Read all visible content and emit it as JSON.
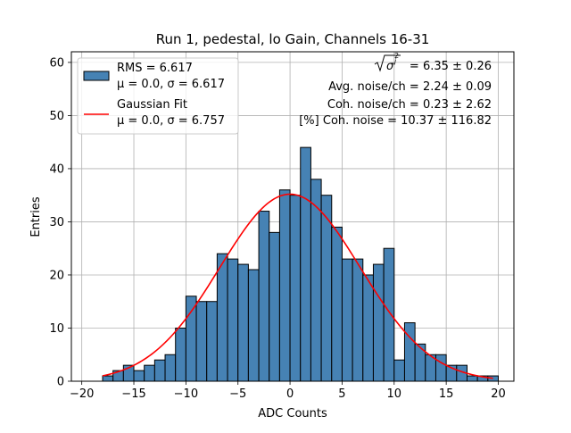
{
  "chart_data": {
    "type": "histogram",
    "title": "Run 1, pedestal, lo Gain, Channels 16-31",
    "xlabel": "ADC Counts",
    "ylabel": "Entries",
    "xlim": [
      -21,
      21.5
    ],
    "ylim": [
      0,
      62
    ],
    "grid": true,
    "legend_position": "top-left",
    "xticks": [
      -20,
      -15,
      -10,
      -5,
      0,
      5,
      10,
      15,
      20
    ],
    "xtick_labels": [
      "−20",
      "−15",
      "−10",
      "−5",
      "0",
      "5",
      "10",
      "15",
      "20"
    ],
    "yticks": [
      0,
      10,
      20,
      30,
      40,
      50,
      60
    ],
    "ytick_labels": [
      "0",
      "10",
      "20",
      "30",
      "40",
      "50",
      "60"
    ],
    "bins": {
      "start": -18,
      "width": 1,
      "counts": [
        1,
        2,
        3,
        2,
        3,
        4,
        5,
        10,
        16,
        15,
        15,
        24,
        23,
        22,
        21,
        32,
        28,
        36,
        35,
        44,
        38,
        35,
        29,
        23,
        23,
        20,
        22,
        25,
        4,
        11,
        7,
        5,
        5,
        3,
        3,
        1,
        1,
        1
      ]
    },
    "series": [
      {
        "name": "RMS = 6.617",
        "name_line2": "μ = 0.0, σ = 6.617",
        "kind": "hist",
        "color": "#4682b4"
      },
      {
        "name": "Gaussian Fit",
        "name_line2": "μ = 0.0, σ = 6.757",
        "kind": "line",
        "color": "#ff0000",
        "mu": 0.0,
        "sigma": 6.757,
        "amplitude": 35.2,
        "x_range": [
          -18,
          19.5
        ]
      }
    ],
    "annotations": {
      "line1": "= 6.35 ± 0.26",
      "line2": "Avg. noise/ch = 2.24 ± 0.09",
      "line3": "Coh. noise/ch = 0.23 ± 2.62",
      "line4": "[%] Coh. noise = 10.37 ± 116.82"
    }
  }
}
